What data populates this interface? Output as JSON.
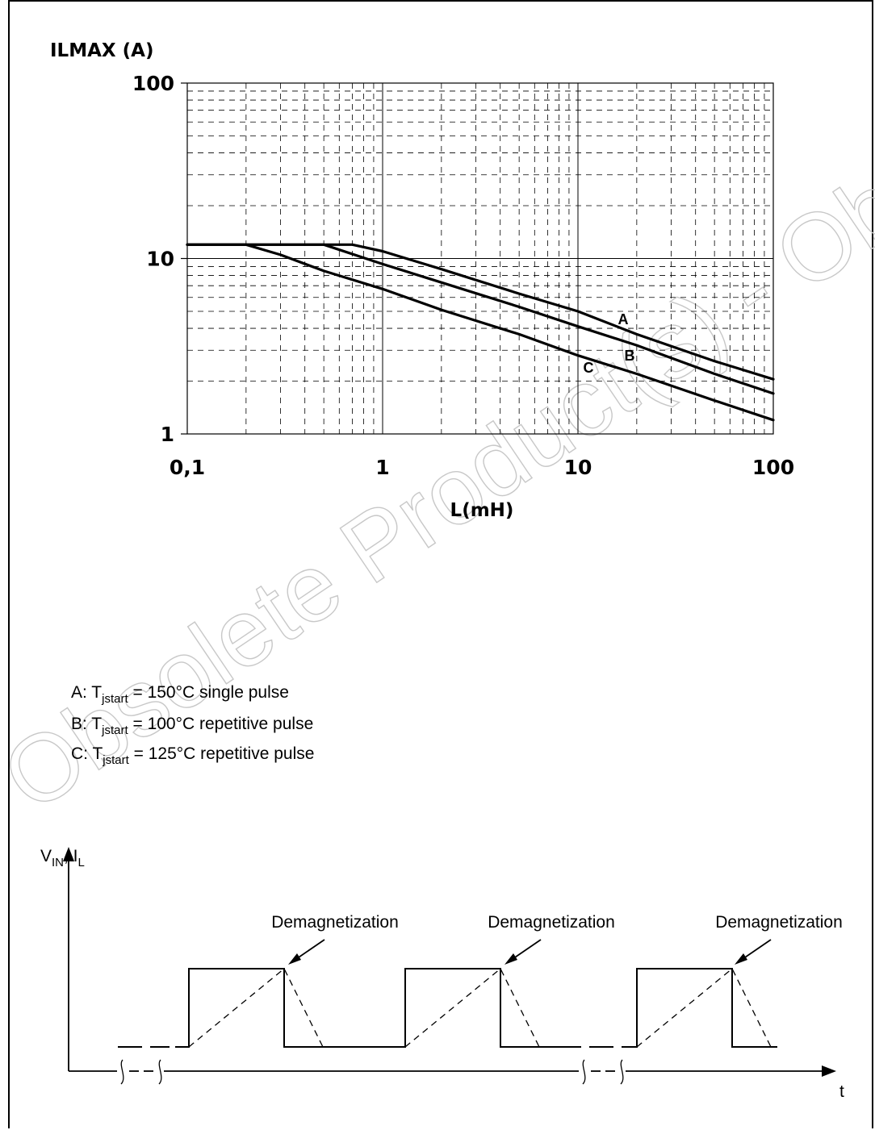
{
  "chart_data": [
    {
      "type": "line",
      "title": "",
      "xlabel": "L(mH)",
      "ylabel": "ILMAX (A)",
      "x_scale": "log",
      "y_scale": "log",
      "xlim": [
        0.1,
        100
      ],
      "ylim": [
        1,
        100
      ],
      "x_ticks": [
        "0,1",
        "1",
        "10",
        "100"
      ],
      "y_ticks": [
        "1",
        "10",
        "100"
      ],
      "grid": "major solid, minor dashed",
      "series": [
        {
          "name": "A",
          "x": [
            0.1,
            0.2,
            0.5,
            0.7,
            1,
            2,
            5,
            10,
            20,
            50,
            100
          ],
          "y": [
            12,
            12,
            12,
            12,
            11,
            8.7,
            6.3,
            5.0,
            3.7,
            2.6,
            2.05
          ]
        },
        {
          "name": "B",
          "x": [
            0.1,
            0.2,
            0.4,
            0.5,
            1,
            2,
            5,
            10,
            20,
            50,
            100
          ],
          "y": [
            12,
            12,
            12,
            12,
            9.3,
            7.3,
            5.3,
            4.1,
            3.2,
            2.2,
            1.7
          ]
        },
        {
          "name": "C",
          "x": [
            0.1,
            0.2,
            0.3,
            0.5,
            1,
            2,
            5,
            10,
            20,
            50,
            100
          ],
          "y": [
            12,
            12,
            10.5,
            8.5,
            6.7,
            5.1,
            3.7,
            2.8,
            2.2,
            1.55,
            1.2
          ]
        }
      ]
    }
  ],
  "legend": {
    "items": [
      {
        "key": "A: T",
        "sub": "jstart",
        "rest": " = 150°C single pulse"
      },
      {
        "key": "B: T",
        "sub": "jstart",
        "rest": " = 100°C repetitive pulse"
      },
      {
        "key": "C: T",
        "sub": "jstart",
        "rest": " = 125°C repetitive pulse"
      }
    ]
  },
  "waveform": {
    "y_label_main": "V",
    "y_label_sub1": "IN",
    "y_label_mid": ", I",
    "y_label_sub2": "L",
    "x_label": "t",
    "annotations": [
      "Demagnetization",
      "Demagnetization",
      "Demagnetization"
    ]
  },
  "watermark": "Obsolete Product(s) - Obsolete Product(s)"
}
